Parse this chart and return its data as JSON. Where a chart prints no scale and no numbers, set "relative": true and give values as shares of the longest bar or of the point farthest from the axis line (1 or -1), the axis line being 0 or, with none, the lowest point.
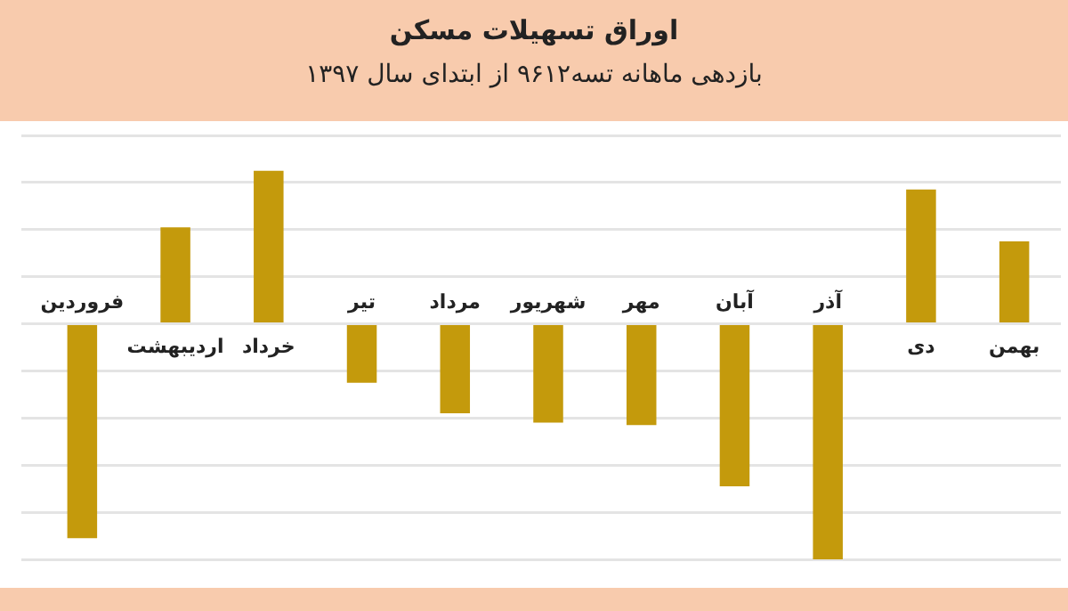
{
  "chart_data": {
    "type": "bar",
    "title": "اوراق تسهیلات مسکن",
    "subtitle": "بازدهی ماهانه تسه۹۶۱۲ از ابتدای سال ۱۳۹۷",
    "categories": [
      "فروردین",
      "اردیبهشت",
      "خرداد",
      "تیر",
      "مرداد",
      "شهریور",
      "مهر",
      "آبان",
      "آذر",
      "دی",
      "بهمن"
    ],
    "values": [
      -0.91,
      0.41,
      0.65,
      -0.25,
      -0.38,
      -0.42,
      -0.43,
      -0.69,
      -1,
      0.57,
      0.35
    ],
    "color": "#c49a0c",
    "relative": true,
    "grid": "y",
    "legend": false
  }
}
